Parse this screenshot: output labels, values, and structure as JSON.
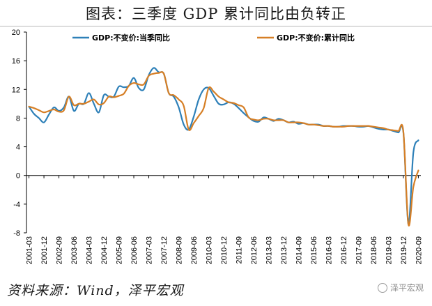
{
  "title": "图表：三季度 GDP 累计同比由负转正",
  "source": "资料来源：Wind，泽平宏观",
  "watermark": "泽平宏观",
  "colors": {
    "series1": "#2e80b8",
    "series2": "#d67f26",
    "axis": "#000000",
    "background": "#ffffff"
  },
  "chart_data": {
    "type": "line",
    "title": "图表：三季度 GDP 累计同比由负转正",
    "xlabel": "",
    "ylabel": "",
    "ylim": [
      -8,
      20
    ],
    "yticks": [
      -8,
      -4,
      0,
      4,
      8,
      12,
      16,
      20
    ],
    "grid": false,
    "legend": "top",
    "x_tick_labels": [
      "2001-03",
      "2001-12",
      "2002-09",
      "2003-06",
      "2004-03",
      "2004-12",
      "2005-09",
      "2006-06",
      "2007-03",
      "2007-12",
      "2008-09",
      "2009-06",
      "2010-03",
      "2010-12",
      "2011-09",
      "2012-06",
      "2013-03",
      "2013-12",
      "2014-09",
      "2015-06",
      "2016-03",
      "2016-12",
      "2017-09",
      "2018-06",
      "2019-03",
      "2019-12",
      "2020-09"
    ],
    "x": [
      "2001-03",
      "2001-06",
      "2001-09",
      "2001-12",
      "2002-03",
      "2002-06",
      "2002-09",
      "2002-12",
      "2003-03",
      "2003-06",
      "2003-09",
      "2003-12",
      "2004-03",
      "2004-06",
      "2004-09",
      "2004-12",
      "2005-03",
      "2005-06",
      "2005-09",
      "2005-12",
      "2006-03",
      "2006-06",
      "2006-09",
      "2006-12",
      "2007-03",
      "2007-06",
      "2007-09",
      "2007-12",
      "2008-03",
      "2008-06",
      "2008-09",
      "2008-12",
      "2009-03",
      "2009-06",
      "2009-09",
      "2009-12",
      "2010-03",
      "2010-06",
      "2010-09",
      "2010-12",
      "2011-03",
      "2011-06",
      "2011-09",
      "2011-12",
      "2012-03",
      "2012-06",
      "2012-09",
      "2012-12",
      "2013-03",
      "2013-06",
      "2013-09",
      "2013-12",
      "2014-03",
      "2014-06",
      "2014-09",
      "2014-12",
      "2015-03",
      "2015-06",
      "2015-09",
      "2015-12",
      "2016-03",
      "2016-06",
      "2016-09",
      "2016-12",
      "2017-03",
      "2017-06",
      "2017-09",
      "2017-12",
      "2018-03",
      "2018-06",
      "2018-09",
      "2018-12",
      "2019-03",
      "2019-06",
      "2019-09",
      "2019-12",
      "2020-03",
      "2020-06",
      "2020-09"
    ],
    "series": [
      {
        "name": "GDP:不变价:当季同比",
        "values": [
          9.6,
          8.6,
          8.0,
          7.4,
          8.5,
          9.5,
          9.0,
          9.5,
          11.0,
          9.0,
          10.0,
          10.0,
          11.5,
          10.0,
          8.8,
          11.2,
          11.0,
          11.0,
          12.4,
          12.3,
          12.5,
          13.6,
          12.2,
          12.0,
          14.0,
          15.0,
          14.4,
          14.2,
          11.5,
          11.0,
          9.5,
          7.1,
          6.4,
          8.2,
          10.6,
          12.0,
          12.2,
          11.1,
          10.0,
          9.9,
          10.2,
          10.0,
          9.4,
          8.7,
          8.1,
          7.6,
          7.5,
          8.1,
          7.9,
          7.6,
          7.9,
          7.7,
          7.4,
          7.5,
          7.2,
          7.3,
          7.1,
          7.1,
          7.1,
          6.9,
          6.9,
          6.8,
          6.8,
          6.9,
          6.9,
          6.9,
          6.8,
          6.8,
          6.9,
          6.7,
          6.5,
          6.4,
          6.4,
          6.2,
          6.0,
          6.0,
          -6.8,
          3.2,
          4.9
        ]
      },
      {
        "name": "GDP:不变价:累计同比",
        "values": [
          9.6,
          9.4,
          9.1,
          8.8,
          9.0,
          9.2,
          8.9,
          9.1,
          11.0,
          9.8,
          10.0,
          10.0,
          10.3,
          10.6,
          9.9,
          10.1,
          11.0,
          10.9,
          11.1,
          11.4,
          12.5,
          12.9,
          12.7,
          12.7,
          13.9,
          14.2,
          14.3,
          14.2,
          11.5,
          11.2,
          10.6,
          9.7,
          6.4,
          7.3,
          8.3,
          9.4,
          12.2,
          11.7,
          11.0,
          10.6,
          10.2,
          10.1,
          9.8,
          9.5,
          8.1,
          7.8,
          7.7,
          7.9,
          7.9,
          7.7,
          7.7,
          7.7,
          7.4,
          7.4,
          7.4,
          7.3,
          7.1,
          7.1,
          7.0,
          6.9,
          6.9,
          6.8,
          6.8,
          6.8,
          6.9,
          6.9,
          6.9,
          6.9,
          6.9,
          6.8,
          6.7,
          6.6,
          6.4,
          6.3,
          6.2,
          6.1,
          -6.8,
          -1.6,
          0.7
        ]
      }
    ]
  }
}
